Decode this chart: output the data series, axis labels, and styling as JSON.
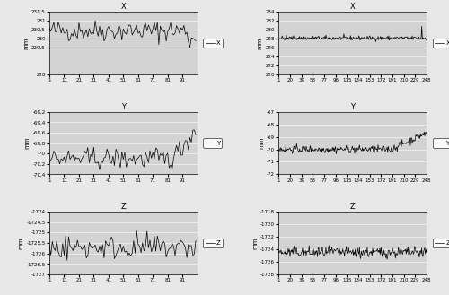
{
  "left_x": {
    "title": "X",
    "ylabel": "mm",
    "ylim": [
      228,
      231.5
    ],
    "yticks": [
      228,
      229.5,
      230,
      230.5,
      231,
      231.5
    ],
    "ytick_labels": [
      "228",
      "229,5",
      "230",
      "230,5",
      "231",
      "231,5"
    ],
    "xlim": [
      1,
      101
    ],
    "xticks": [
      1,
      11,
      21,
      31,
      41,
      51,
      61,
      71,
      81,
      91
    ],
    "mean": 230.45,
    "noise": 0.3,
    "n": 100,
    "legend": "X",
    "drop_at": 94,
    "drop_val": -0.5
  },
  "right_x": {
    "title": "X",
    "ylabel": "mm",
    "ylim": [
      220,
      234
    ],
    "yticks": [
      220,
      222,
      224,
      226,
      228,
      230,
      232,
      234
    ],
    "ytick_labels": [
      "220",
      "222",
      "224",
      "226",
      "228",
      "230",
      "232",
      "234"
    ],
    "xlim": [
      1,
      248
    ],
    "xticks": [
      1,
      20,
      39,
      58,
      77,
      96,
      115,
      134,
      153,
      172,
      191,
      210,
      229,
      248
    ],
    "mean": 228.1,
    "noise": 0.25,
    "n": 248,
    "legend": "X",
    "spike_at": 239,
    "spike_val": 2.8
  },
  "left_y": {
    "title": "Y",
    "ylabel": "mm",
    "ylim": [
      -70.4,
      -69.2
    ],
    "yticks": [
      -70.4,
      -70.2,
      -70.0,
      -69.8,
      -69.6,
      -69.4,
      -69.2
    ],
    "ytick_labels": [
      "-70,4",
      "-70,2",
      "-70",
      "-69,8",
      "-69,6",
      "-69,4",
      "-69,2"
    ],
    "xlim": [
      1,
      101
    ],
    "xticks": [
      1,
      11,
      21,
      31,
      41,
      51,
      61,
      71,
      81,
      91
    ],
    "mean": -70.1,
    "noise": 0.1,
    "n": 100,
    "legend": "Y",
    "rise_at": 83,
    "rise_val": 0.55
  },
  "right_y": {
    "title": "Y",
    "ylabel": "mm",
    "ylim": [
      -72,
      -67
    ],
    "yticks": [
      -72,
      -71,
      -70,
      -69,
      -68,
      -67
    ],
    "ytick_labels": [
      "-72",
      "-71",
      "-70",
      "-69",
      "-68",
      "-67"
    ],
    "xlim": [
      1,
      248
    ],
    "xticks": [
      1,
      20,
      39,
      58,
      77,
      96,
      115,
      134,
      153,
      172,
      191,
      210,
      229,
      248
    ],
    "mean": -70.0,
    "noise": 0.15,
    "n": 248,
    "legend": "Y",
    "rise_at": 188,
    "rise_val": 1.3
  },
  "left_z": {
    "title": "Z",
    "ylabel": "mm",
    "ylim": [
      -1727,
      -1724
    ],
    "yticks": [
      -1727,
      -1726.5,
      -1726,
      -1725.5,
      -1725,
      -1724.5,
      -1724
    ],
    "ytick_labels": [
      "-1727",
      "-1726,5",
      "-1726",
      "-1725,5",
      "-1725",
      "-1724,5",
      "-1724"
    ],
    "xlim": [
      1,
      101
    ],
    "xticks": [
      1,
      11,
      21,
      31,
      41,
      51,
      61,
      71,
      81,
      91
    ],
    "mean": -1725.7,
    "noise": 0.3,
    "n": 100,
    "legend": "Z"
  },
  "right_z": {
    "title": "Z",
    "ylabel": "mm",
    "ylim": [
      -1728,
      -1718
    ],
    "yticks": [
      -1728,
      -1726,
      -1724,
      -1722,
      -1720,
      -1718
    ],
    "ytick_labels": [
      "-1728",
      "-1726",
      "-1724",
      "-1722",
      "-1720",
      "-1718"
    ],
    "xlim": [
      1,
      248
    ],
    "xticks": [
      1,
      20,
      39,
      58,
      77,
      96,
      115,
      134,
      153,
      172,
      191,
      210,
      229,
      248
    ],
    "mean": -1724.5,
    "noise": 0.45,
    "n": 248,
    "legend": "Z"
  },
  "bg_color": "#d3d3d3",
  "line_color": "#000000",
  "fig_bg": "#e8e8e8"
}
